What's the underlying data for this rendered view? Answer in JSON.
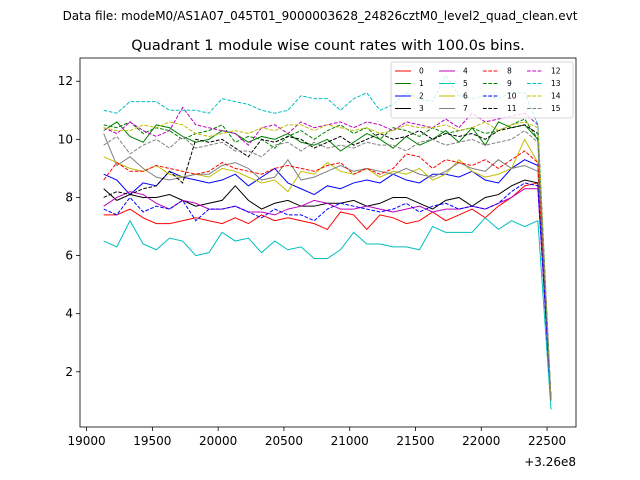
{
  "chart_data": {
    "type": "line",
    "suptitle": "Data file: modeM0/AS1A07_045T01_9000003628_24826cztM0_level2_quad_clean.evt",
    "title": "Quadrant 1 module wise count rates with 100.0s bins.",
    "xlabel": "",
    "ylabel": "",
    "x_offset_label": "+3.26e8",
    "xlim": [
      18950,
      22720
    ],
    "ylim": [
      0.1,
      12.8
    ],
    "x_ticks": [
      19000,
      19500,
      20000,
      20500,
      21000,
      21500,
      22000,
      22500
    ],
    "y_ticks": [
      2,
      4,
      6,
      8,
      10,
      12
    ],
    "x_tick_labels": [
      "19000",
      "19500",
      "20000",
      "20500",
      "21000",
      "21500",
      "22000",
      "22500"
    ],
    "y_tick_labels": [
      "2",
      "4",
      "6",
      "8",
      "10",
      "12"
    ],
    "grid": false,
    "legend_position": "top-right",
    "x": [
      19130,
      19230,
      19330,
      19430,
      19530,
      19630,
      19730,
      19830,
      19930,
      20030,
      20130,
      20230,
      20330,
      20430,
      20530,
      20630,
      20730,
      20830,
      20930,
      21030,
      21130,
      21230,
      21330,
      21430,
      21530,
      21630,
      21730,
      21830,
      21930,
      22030,
      22130,
      22230,
      22330,
      22430,
      22530
    ],
    "series": [
      {
        "name": "0",
        "color": "#ff0000",
        "dash": false,
        "values": [
          7.4,
          7.4,
          7.6,
          7.3,
          7.1,
          7.1,
          7.2,
          7.3,
          7.2,
          7.1,
          7.3,
          7.1,
          7.4,
          7.2,
          7.3,
          7.2,
          7.1,
          6.9,
          7.5,
          7.4,
          6.9,
          7.4,
          7.3,
          7.1,
          7.2,
          7.5,
          7.2,
          7.4,
          7.6,
          7.3,
          7.7,
          8.0,
          8.4,
          8.5,
          1.0
        ]
      },
      {
        "name": "1",
        "color": "#008000",
        "dash": false,
        "values": [
          10.3,
          10.6,
          10.1,
          9.9,
          10.5,
          10.4,
          10.1,
          9.9,
          10.0,
          10.3,
          10.2,
          9.9,
          10.1,
          10.0,
          10.2,
          9.9,
          9.8,
          10.0,
          9.6,
          9.9,
          10.2,
          10.0,
          9.7,
          10.1,
          9.8,
          10.0,
          10.3,
          9.9,
          10.4,
          9.8,
          10.6,
          10.4,
          10.5,
          10.0,
          1.0
        ]
      },
      {
        "name": "2",
        "color": "#0000ff",
        "dash": false,
        "values": [
          8.8,
          8.6,
          8.1,
          8.5,
          8.4,
          8.9,
          8.7,
          8.6,
          8.5,
          8.6,
          8.8,
          8.4,
          8.7,
          9.0,
          8.5,
          8.3,
          8.1,
          8.4,
          8.3,
          8.5,
          8.6,
          8.5,
          8.8,
          8.6,
          8.5,
          8.8,
          8.8,
          8.7,
          8.9,
          8.6,
          8.5,
          9.0,
          9.3,
          9.1,
          1.0
        ]
      },
      {
        "name": "3",
        "color": "#000000",
        "dash": false,
        "values": [
          8.3,
          7.9,
          8.1,
          8.0,
          8.0,
          8.1,
          7.9,
          7.7,
          7.8,
          7.9,
          8.4,
          7.9,
          7.6,
          7.8,
          7.9,
          7.7,
          7.7,
          7.8,
          7.8,
          7.9,
          7.7,
          7.8,
          8.0,
          8.0,
          7.8,
          7.6,
          7.9,
          8.0,
          7.7,
          8.0,
          8.1,
          8.4,
          8.6,
          8.5,
          1.0
        ]
      },
      {
        "name": "4",
        "color": "#bf00bf",
        "dash": false,
        "values": [
          7.7,
          8.0,
          8.2,
          8.1,
          7.8,
          7.6,
          7.9,
          7.8,
          7.6,
          7.6,
          7.7,
          7.5,
          7.5,
          7.4,
          7.6,
          7.7,
          7.9,
          7.8,
          7.6,
          7.6,
          7.7,
          7.6,
          7.5,
          7.6,
          7.7,
          7.5,
          7.6,
          7.6,
          7.7,
          7.6,
          7.8,
          8.0,
          8.3,
          8.3,
          1.0
        ]
      },
      {
        "name": "5",
        "color": "#00bfbf",
        "dash": false,
        "values": [
          6.5,
          6.3,
          7.2,
          6.4,
          6.2,
          6.6,
          6.5,
          6.0,
          6.1,
          6.8,
          6.5,
          6.6,
          6.1,
          6.5,
          6.2,
          6.3,
          5.9,
          5.9,
          6.2,
          6.8,
          6.4,
          6.4,
          6.3,
          6.3,
          6.2,
          7.0,
          6.8,
          6.8,
          6.8,
          7.3,
          6.9,
          7.2,
          7.0,
          7.2,
          0.7
        ]
      },
      {
        "name": "6",
        "color": "#bfbf00",
        "dash": false,
        "values": [
          9.4,
          9.2,
          9.0,
          8.9,
          9.1,
          8.8,
          8.7,
          8.8,
          8.7,
          9.0,
          8.9,
          8.7,
          8.5,
          8.6,
          8.2,
          8.9,
          8.8,
          9.2,
          8.9,
          8.8,
          9.0,
          8.7,
          8.9,
          8.8,
          9.0,
          8.6,
          8.8,
          9.3,
          8.9,
          8.7,
          8.8,
          9.0,
          10.0,
          9.2,
          1.0
        ]
      },
      {
        "name": "7",
        "color": "#808080",
        "dash": false,
        "values": [
          10.2,
          9.1,
          9.4,
          9.0,
          8.7,
          8.6,
          8.7,
          8.8,
          8.8,
          9.1,
          9.2,
          9.0,
          8.6,
          8.7,
          9.3,
          8.6,
          8.7,
          8.9,
          9.1,
          8.9,
          9.0,
          8.9,
          8.8,
          9.0,
          8.8,
          8.7,
          8.9,
          9.2,
          9.0,
          8.9,
          9.3,
          9.0,
          9.1,
          8.9,
          1.0
        ]
      },
      {
        "name": "8",
        "color": "#ff0000",
        "dash": true,
        "values": [
          8.6,
          9.2,
          8.9,
          8.9,
          9.1,
          9.0,
          8.9,
          8.8,
          8.9,
          9.2,
          9.0,
          8.9,
          8.8,
          9.0,
          9.1,
          9.0,
          8.9,
          9.1,
          9.2,
          8.8,
          9.0,
          8.8,
          9.0,
          9.5,
          9.4,
          9.0,
          9.3,
          9.2,
          9.1,
          9.3,
          9.0,
          9.3,
          9.6,
          9.2,
          1.0
        ]
      },
      {
        "name": "9",
        "color": "#008000",
        "dash": true,
        "values": [
          10.5,
          10.4,
          10.6,
          10.2,
          10.4,
          10.3,
          10.0,
          10.2,
          10.3,
          10.5,
          9.9,
          10.1,
          10.0,
          9.7,
          10.1,
          10.3,
          10.0,
          10.3,
          10.5,
          10.2,
          10.4,
          10.0,
          10.4,
          10.3,
          10.1,
          10.4,
          10.2,
          10.3,
          10.4,
          10.2,
          10.3,
          10.5,
          10.7,
          10.0,
          1.0
        ]
      },
      {
        "name": "10",
        "color": "#0000ff",
        "dash": true,
        "values": [
          7.6,
          7.4,
          8.0,
          7.5,
          7.7,
          7.6,
          7.9,
          7.2,
          7.6,
          7.6,
          7.7,
          7.5,
          7.3,
          7.6,
          7.4,
          7.4,
          7.2,
          7.6,
          7.8,
          7.7,
          7.6,
          7.5,
          7.6,
          7.8,
          7.5,
          7.7,
          7.8,
          7.6,
          7.7,
          7.6,
          7.8,
          8.2,
          8.5,
          8.4,
          1.0
        ]
      },
      {
        "name": "11",
        "color": "#000000",
        "dash": true,
        "values": [
          8.0,
          8.2,
          8.1,
          8.3,
          8.4,
          8.9,
          8.5,
          10.0,
          9.9,
          10.0,
          9.7,
          9.4,
          10.0,
          9.9,
          10.1,
          10.0,
          9.7,
          9.9,
          10.1,
          9.8,
          10.0,
          10.2,
          10.0,
          10.1,
          10.3,
          10.0,
          10.2,
          10.1,
          10.2,
          10.0,
          10.3,
          10.4,
          10.5,
          10.2,
          1.0
        ]
      },
      {
        "name": "12",
        "color": "#bf00bf",
        "dash": true,
        "values": [
          10.4,
          10.2,
          10.6,
          10.3,
          10.1,
          10.3,
          11.1,
          10.5,
          10.4,
          10.3,
          10.2,
          9.8,
          10.4,
          10.5,
          10.2,
          10.6,
          10.4,
          10.5,
          10.6,
          10.4,
          10.6,
          10.5,
          10.3,
          10.6,
          10.5,
          10.4,
          10.7,
          10.4,
          10.9,
          10.6,
          10.7,
          10.8,
          10.9,
          10.5,
          1.0
        ]
      },
      {
        "name": "13",
        "color": "#00bfbf",
        "dash": true,
        "values": [
          11.0,
          10.9,
          11.3,
          11.3,
          11.3,
          11.0,
          11.0,
          11.0,
          10.9,
          11.4,
          11.3,
          11.2,
          11.0,
          10.9,
          11.0,
          11.5,
          11.4,
          11.4,
          11.0,
          11.4,
          11.6,
          11.0,
          11.2,
          11.6,
          11.4,
          11.3,
          12.2,
          11.5,
          11.4,
          11.5,
          11.4,
          11.6,
          11.6,
          10.5,
          1.0
        ]
      },
      {
        "name": "14",
        "color": "#bfbf00",
        "dash": true,
        "values": [
          10.4,
          10.3,
          10.3,
          10.5,
          10.4,
          10.6,
          10.5,
          10.2,
          10.1,
          10.2,
          10.3,
          10.2,
          10.4,
          10.3,
          10.5,
          10.5,
          10.3,
          10.5,
          10.4,
          10.3,
          10.4,
          10.2,
          10.3,
          10.5,
          10.4,
          10.4,
          10.5,
          10.3,
          10.4,
          10.6,
          10.3,
          10.5,
          10.6,
          10.4,
          1.0
        ]
      },
      {
        "name": "15",
        "color": "#808080",
        "dash": true,
        "values": [
          9.8,
          10.1,
          9.5,
          9.8,
          10.0,
          9.7,
          10.1,
          9.7,
          9.8,
          9.9,
          9.6,
          9.6,
          9.4,
          9.8,
          9.9,
          9.6,
          9.9,
          9.7,
          9.8,
          9.7,
          9.9,
          9.8,
          9.8,
          9.6,
          9.9,
          10.0,
          9.8,
          9.9,
          10.0,
          9.8,
          9.9,
          10.0,
          10.3,
          9.9,
          1.0
        ]
      }
    ]
  }
}
